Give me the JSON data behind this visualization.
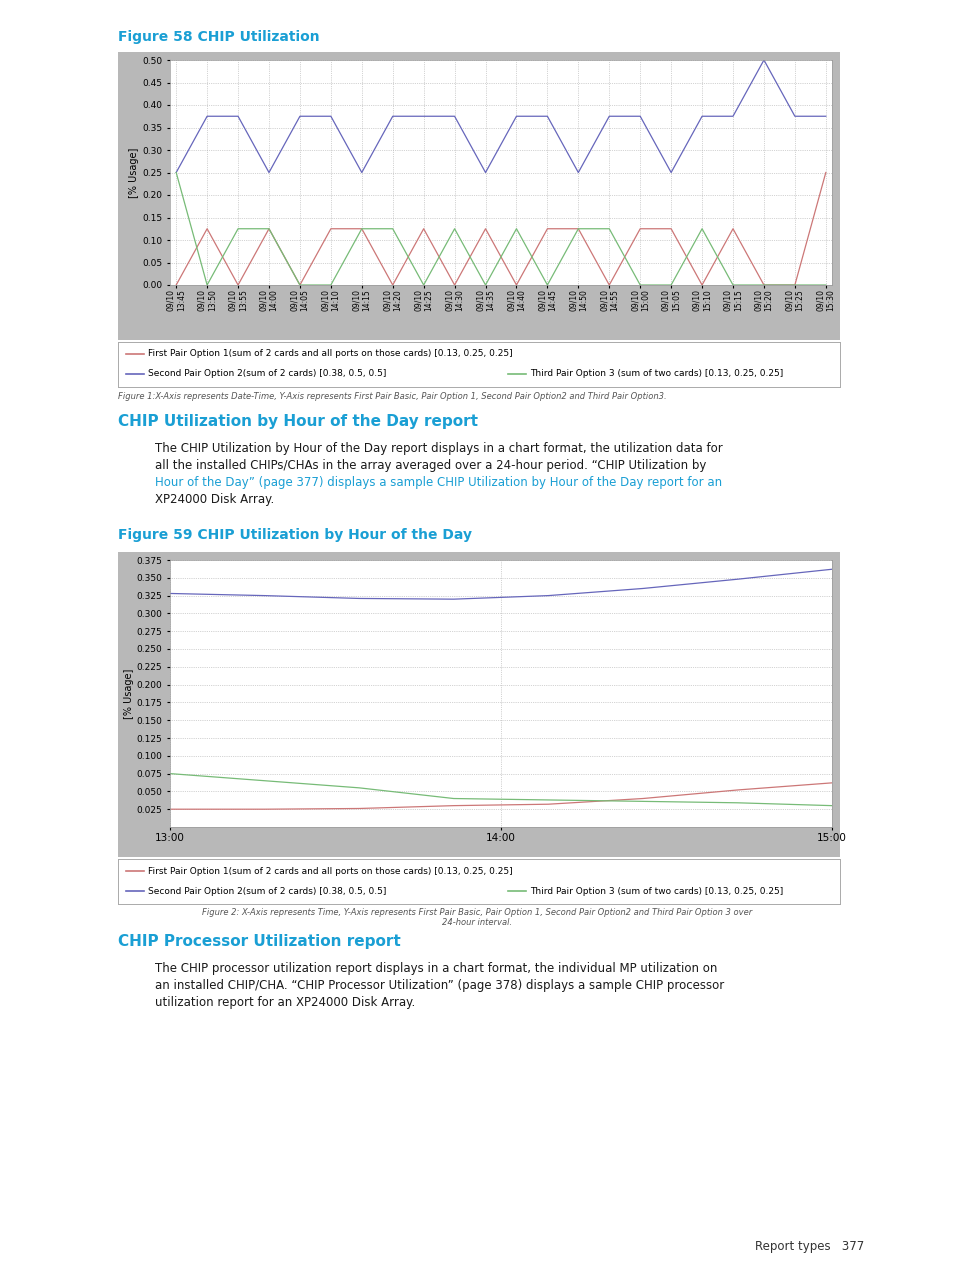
{
  "page_bg": "#ffffff",
  "page_width": 9.54,
  "page_height": 12.71,
  "fig58_title": "Figure 58 CHIP Utilization",
  "fig59_title": "Figure 59 CHIP Utilization by Hour of the Day",
  "section1_title": "CHIP Utilization by Hour of the Day report",
  "section2_title": "CHIP Processor Utilization report",
  "fig1_caption": "Figure 1:X-Axis represents Date-Time, Y-Axis represents First Pair Basic, Pair Option 1, Second Pair Option2 and Third Pair Option3.",
  "fig2_caption_line1": "Figure 2: X-Axis represents Time, Y-Axis represents First Pair Basic, Pair Option 1, Second Pair Option2 and Third Pair Option 3 over",
  "fig2_caption_line2": "24-hour interval.",
  "chart1_bg": "#b8b8b8",
  "chart1_plot_bg": "#ffffff",
  "chart1_ylabel": "[% Usage]",
  "chart1_ylim": [
    0.0,
    0.5
  ],
  "chart1_yticks": [
    0.0,
    0.05,
    0.1,
    0.15,
    0.2,
    0.25,
    0.3,
    0.35,
    0.4,
    0.45,
    0.5
  ],
  "chart1_xticks": [
    "09/10\n13:45",
    "09/10\n13:50",
    "09/10\n13:55",
    "09/10\n14:00",
    "09/10\n14:05",
    "09/10\n14:10",
    "09/10\n14:15",
    "09/10\n14:20",
    "09/10\n14:25",
    "09/10\n14:30",
    "09/10\n14:35",
    "09/10\n14:40",
    "09/10\n14:45",
    "09/10\n14:50",
    "09/10\n14:55",
    "09/10\n15:00",
    "09/10\n15:05",
    "09/10\n15:10",
    "09/10\n15:15",
    "09/10\n15:20",
    "09/10\n15:25",
    "09/10\n15:30"
  ],
  "chart1_blue_line": [
    0.25,
    0.375,
    0.375,
    0.25,
    0.375,
    0.375,
    0.25,
    0.375,
    0.375,
    0.375,
    0.25,
    0.375,
    0.375,
    0.25,
    0.375,
    0.375,
    0.25,
    0.375,
    0.375,
    0.5,
    0.375,
    0.375
  ],
  "chart1_red_line": [
    0.0,
    0.125,
    0.0,
    0.125,
    0.0,
    0.125,
    0.125,
    0.0,
    0.125,
    0.0,
    0.125,
    0.0,
    0.125,
    0.125,
    0.0,
    0.125,
    0.125,
    0.0,
    0.125,
    0.0,
    0.0,
    0.25
  ],
  "chart1_green_line": [
    0.25,
    0.0,
    0.125,
    0.125,
    0.0,
    0.0,
    0.125,
    0.125,
    0.0,
    0.125,
    0.0,
    0.125,
    0.0,
    0.125,
    0.125,
    0.0,
    0.0,
    0.125,
    0.0,
    0.0,
    0.0,
    0.0
  ],
  "chart1_legend_line1": "First Pair Option 1(sum of 2 cards and all ports on those cards) [0.13, 0.25, 0.25]",
  "chart1_legend_line2": "Second Pair Option 2(sum of 2 cards) [0.38, 0.5, 0.5]",
  "chart1_legend_line3": "Third Pair Option 3 (sum of two cards) [0.13, 0.25, 0.25]",
  "chart2_bg": "#b8b8b8",
  "chart2_plot_bg": "#ffffff",
  "chart2_ylabel": "[% Usage]",
  "chart2_ylim": [
    0.0,
    0.375
  ],
  "chart2_yticks": [
    0.025,
    0.05,
    0.075,
    0.1,
    0.125,
    0.15,
    0.175,
    0.2,
    0.225,
    0.25,
    0.275,
    0.3,
    0.325,
    0.35,
    0.375
  ],
  "chart2_xticks": [
    "13:00",
    "14:00",
    "15:00"
  ],
  "chart2_blue_line": [
    0.328,
    0.325,
    0.321,
    0.32,
    0.325,
    0.335,
    0.348,
    0.362
  ],
  "chart2_red_line": [
    0.025,
    0.025,
    0.026,
    0.03,
    0.032,
    0.04,
    0.052,
    0.062
  ],
  "chart2_green_line": [
    0.075,
    0.065,
    0.055,
    0.04,
    0.038,
    0.036,
    0.034,
    0.03
  ],
  "chart2_legend_line1": "First Pair Option 1(sum of 2 cards and all ports on those cards) [0.13, 0.25, 0.25]",
  "chart2_legend_line2": "Second Pair Option 2(sum of 2 cards) [0.38, 0.5, 0.5]",
  "chart2_legend_line3": "Third Pair Option 3 (sum of two cards) [0.13, 0.25, 0.25]",
  "color_blue": "#6666bb",
  "color_red": "#cc7777",
  "color_green": "#77bb77",
  "color_cyan_heading": "#1a9fd4",
  "color_dark_text": "#1a1a1a",
  "color_caption": "#555555",
  "footer_text": "Report types   377"
}
